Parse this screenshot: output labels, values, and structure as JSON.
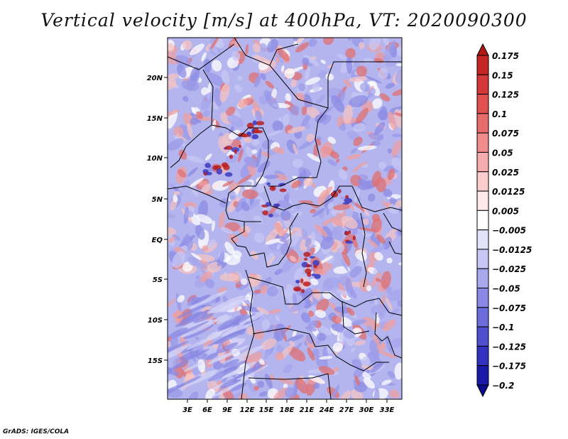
{
  "title": "Vertical velocity [m/s] at 400hPa, VT: 2020090300",
  "credit": "GrADS: IGES/COLA",
  "map": {
    "lat_labels": [
      "20N",
      "15N",
      "10N",
      "5N",
      "EQ",
      "5S",
      "10S",
      "15S"
    ],
    "lon_labels": [
      "3E",
      "6E",
      "9E",
      "12E",
      "15E",
      "18E",
      "21E",
      "24E",
      "27E",
      "30E",
      "33E"
    ]
  },
  "colorbar": {
    "labels": [
      "0.175",
      "0.15",
      "0.125",
      "0.1",
      "0.075",
      "0.05",
      "0.025",
      "0.0125",
      "0.005",
      "−0.005",
      "−0.0125",
      "−0.025",
      "−0.05",
      "−0.075",
      "−0.1",
      "−0.125",
      "−0.175",
      "−0.2"
    ],
    "colors": [
      "#b01818",
      "#c42626",
      "#d43838",
      "#e05050",
      "#e86c6c",
      "#f08c8c",
      "#f6acac",
      "#fbcccc",
      "#fde9e9",
      "#ffffff",
      "#e2e2fb",
      "#c6c6f5",
      "#a8a8ee",
      "#8a8ae6",
      "#6c6cdc",
      "#4e4ed0",
      "#3232c0",
      "#1a1aa8",
      "#0c0c8c"
    ]
  }
}
